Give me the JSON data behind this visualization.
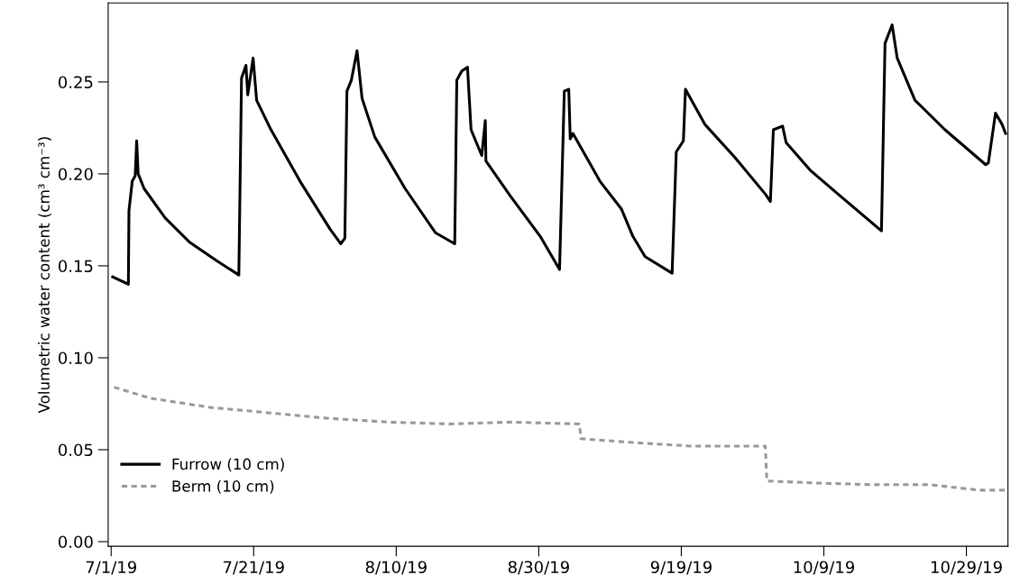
{
  "chart_data": {
    "type": "line",
    "ylabel": "Volumetric water content (cm³ cm⁻³)",
    "xlim": [
      "2019-06-30T14:00",
      "2019-11-03T20:00"
    ],
    "xticks": [
      {
        "value": "2019-07-01",
        "label": "7/1/19"
      },
      {
        "value": "2019-07-21",
        "label": "7/21/19"
      },
      {
        "value": "2019-08-10",
        "label": "8/10/19"
      },
      {
        "value": "2019-08-30",
        "label": "8/30/19"
      },
      {
        "value": "2019-09-19",
        "label": "9/19/19"
      },
      {
        "value": "2019-10-09",
        "label": "10/9/19"
      },
      {
        "value": "2019-10-29",
        "label": "10/29/19"
      }
    ],
    "ylim": [
      -0.0025,
      0.293
    ],
    "yticks": [
      {
        "value": 0,
        "label": "0.00"
      },
      {
        "value": 0.05,
        "label": "0.05"
      },
      {
        "value": 0.1,
        "label": "0.10"
      },
      {
        "value": 0.15,
        "label": "0.15"
      },
      {
        "value": 0.2,
        "label": "0.20"
      },
      {
        "value": 0.25,
        "label": "0.25"
      }
    ],
    "grid": false,
    "legend": "bottom left",
    "series": [
      {
        "name": "Furrow (10 cm)",
        "color": "#000000",
        "line_style": "solid",
        "x": [
          "2019-07-01T05:00",
          "2019-07-03T10:00",
          "2019-07-03T12:00",
          "2019-07-03T23:00",
          "2019-07-04T09:00",
          "2019-07-04T14:00",
          "2019-07-04T19:00",
          "2019-07-05T15:00",
          "2019-07-08T14:00",
          "2019-07-11T23:00",
          "2019-07-15T17:00",
          "2019-07-18T22:00",
          "2019-07-19T07:00",
          "2019-07-19T22:00",
          "2019-07-20T04:00",
          "2019-07-20T22:00",
          "2019-07-21T10:00",
          "2019-07-23T07:00",
          "2019-07-27T12:00",
          "2019-07-31T17:00",
          "2019-08-02T05:00",
          "2019-08-02T19:00",
          "2019-08-03T02:00",
          "2019-08-03T17:00",
          "2019-08-04T12:00",
          "2019-08-05T05:00",
          "2019-08-07T00:00",
          "2019-08-11T06:00",
          "2019-08-15T12:00",
          "2019-08-18T05:00",
          "2019-08-18T12:00",
          "2019-08-19T05:00",
          "2019-08-20T00:00",
          "2019-08-20T12:00",
          "2019-08-22T00:00",
          "2019-08-22T12:00",
          "2019-08-22T14:00",
          "2019-08-26T00:00",
          "2019-08-30T05:00",
          "2019-09-01T22:00",
          "2019-09-02T14:00",
          "2019-09-03T05:00",
          "2019-09-03T10:00",
          "2019-09-03T19:00",
          "2019-09-07T14:00",
          "2019-09-10T14:00",
          "2019-09-12T05:00",
          "2019-09-13T22:00",
          "2019-09-17T17:00",
          "2019-09-18T07:00",
          "2019-09-19T07:00",
          "2019-09-19T14:00",
          "2019-09-22T07:00",
          "2019-09-26T12:00",
          "2019-09-30T19:00",
          "2019-10-01T12:00",
          "2019-10-01T22:00",
          "2019-10-03T05:00",
          "2019-10-03T17:00",
          "2019-10-07T02:00",
          "2019-10-11T07:00",
          "2019-10-17T02:00",
          "2019-10-17T14:00",
          "2019-10-18T14:00",
          "2019-10-19T07:00",
          "2019-10-21T19:00",
          "2019-10-26T00:00",
          "2019-10-31T17:00",
          "2019-11-01T02:00",
          "2019-11-02T02:00",
          "2019-11-03T00:00",
          "2019-11-03T12:00"
        ],
        "values": [
          0.144,
          0.14,
          0.18,
          0.196,
          0.199,
          0.218,
          0.2,
          0.192,
          0.176,
          0.163,
          0.153,
          0.145,
          0.252,
          0.259,
          0.243,
          0.263,
          0.24,
          0.225,
          0.196,
          0.17,
          0.162,
          0.165,
          0.245,
          0.251,
          0.267,
          0.241,
          0.22,
          0.192,
          0.168,
          0.162,
          0.251,
          0.256,
          0.258,
          0.224,
          0.21,
          0.229,
          0.207,
          0.188,
          0.166,
          0.148,
          0.245,
          0.246,
          0.219,
          0.222,
          0.196,
          0.181,
          0.166,
          0.155,
          0.146,
          0.212,
          0.218,
          0.246,
          0.227,
          0.209,
          0.189,
          0.185,
          0.224,
          0.226,
          0.217,
          0.202,
          0.188,
          0.169,
          0.271,
          0.281,
          0.263,
          0.24,
          0.224,
          0.205,
          0.206,
          0.233,
          0.227,
          0.222
        ]
      },
      {
        "name": "Berm (10 cm)",
        "color": "#999999",
        "line_style": "dashed",
        "x": [
          "2019-07-01T10:00",
          "2019-07-06T12:00",
          "2019-07-14T22:00",
          "2019-07-23T07:00",
          "2019-07-31T17:00",
          "2019-08-09T02:00",
          "2019-08-17T14:00",
          "2019-08-26T00:00",
          "2019-09-04T17:00",
          "2019-09-04T22:00",
          "2019-09-11T19:00",
          "2019-09-20T05:00",
          "2019-09-30T19:00",
          "2019-10-01T00:00",
          "2019-10-07T02:00",
          "2019-10-15T12:00",
          "2019-10-23T22:00",
          "2019-10-30T17:00",
          "2019-11-03T12:00"
        ],
        "values": [
          0.084,
          0.078,
          0.073,
          0.07,
          0.067,
          0.065,
          0.064,
          0.065,
          0.064,
          0.056,
          0.054,
          0.052,
          0.052,
          0.033,
          0.032,
          0.031,
          0.031,
          0.028,
          0.028
        ]
      }
    ]
  }
}
